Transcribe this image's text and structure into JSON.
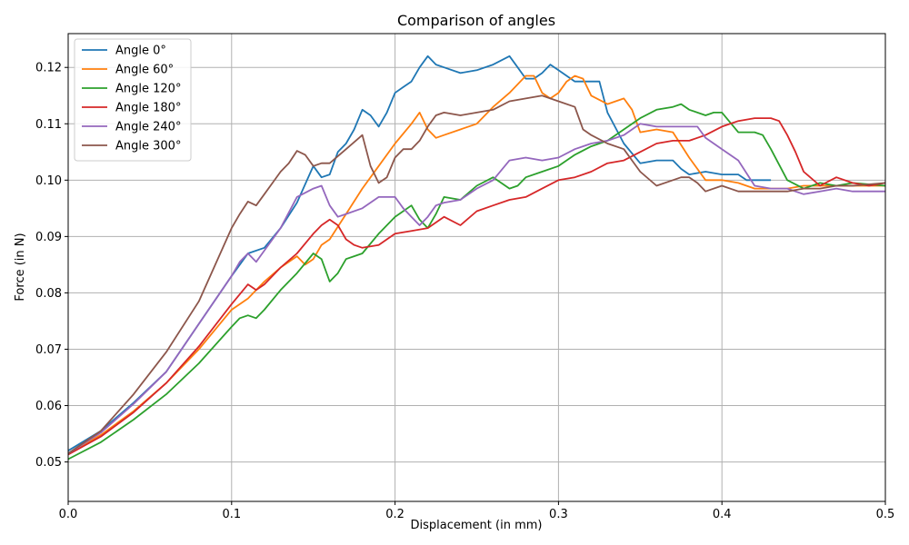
{
  "chart_data": {
    "type": "line",
    "title": "Comparison of angles",
    "xlabel": "Displacement (in mm)",
    "ylabel": "Force (in N)",
    "xlim": [
      0.0,
      0.5
    ],
    "ylim": [
      0.043,
      0.126
    ],
    "grid": true,
    "legend_position": "top-left",
    "x_ticks": [
      "0.0",
      "0.1",
      "0.2",
      "0.3",
      "0.4",
      "0.5"
    ],
    "y_ticks": [
      "0.05",
      "0.06",
      "0.07",
      "0.08",
      "0.09",
      "0.10",
      "0.11",
      "0.12"
    ],
    "series": [
      {
        "name": "Angle 0°",
        "color": "#1f77b4",
        "x": [
          0,
          0.02,
          0.04,
          0.06,
          0.08,
          0.1,
          0.11,
          0.12,
          0.13,
          0.14,
          0.15,
          0.155,
          0.16,
          0.165,
          0.17,
          0.175,
          0.18,
          0.185,
          0.19,
          0.195,
          0.2,
          0.205,
          0.21,
          0.215,
          0.22,
          0.225,
          0.23,
          0.24,
          0.25,
          0.26,
          0.27,
          0.275,
          0.28,
          0.285,
          0.29,
          0.295,
          0.3,
          0.31,
          0.32,
          0.325,
          0.33,
          0.34,
          0.35,
          0.36,
          0.37,
          0.375,
          0.38,
          0.39,
          0.4,
          0.41,
          0.415,
          0.42,
          0.43
        ],
        "y": [
          0.052,
          0.0555,
          0.0605,
          0.066,
          0.0745,
          0.083,
          0.087,
          0.088,
          0.0915,
          0.096,
          0.1025,
          0.1005,
          0.101,
          0.105,
          0.1065,
          0.109,
          0.1125,
          0.1115,
          0.1095,
          0.112,
          0.1155,
          0.1165,
          0.1175,
          0.12,
          0.122,
          0.1205,
          0.12,
          0.119,
          0.1195,
          0.1205,
          0.122,
          0.12,
          0.118,
          0.118,
          0.119,
          0.1205,
          0.1195,
          0.1175,
          0.1175,
          0.1175,
          0.112,
          0.1065,
          0.103,
          0.1035,
          0.1035,
          0.102,
          0.101,
          0.1015,
          0.101,
          0.101,
          0.1,
          0.1,
          0.1
        ]
      },
      {
        "name": "Angle 60°",
        "color": "#ff7f0e",
        "x": [
          0,
          0.02,
          0.04,
          0.06,
          0.08,
          0.1,
          0.11,
          0.12,
          0.13,
          0.14,
          0.145,
          0.15,
          0.155,
          0.16,
          0.17,
          0.18,
          0.19,
          0.2,
          0.21,
          0.215,
          0.22,
          0.225,
          0.23,
          0.24,
          0.25,
          0.26,
          0.27,
          0.28,
          0.285,
          0.29,
          0.295,
          0.3,
          0.305,
          0.31,
          0.315,
          0.32,
          0.33,
          0.34,
          0.345,
          0.35,
          0.36,
          0.37,
          0.38,
          0.39,
          0.4,
          0.41,
          0.42,
          0.43,
          0.44,
          0.45,
          0.5
        ],
        "y": [
          0.0515,
          0.0548,
          0.059,
          0.064,
          0.07,
          0.077,
          0.079,
          0.082,
          0.0845,
          0.0865,
          0.085,
          0.086,
          0.0885,
          0.0895,
          0.094,
          0.0985,
          0.1025,
          0.1065,
          0.11,
          0.112,
          0.109,
          0.1075,
          0.108,
          0.109,
          0.11,
          0.113,
          0.1155,
          0.1185,
          0.1185,
          0.1155,
          0.1145,
          0.1155,
          0.1175,
          0.1185,
          0.118,
          0.115,
          0.1135,
          0.1145,
          0.1125,
          0.1085,
          0.109,
          0.1085,
          0.104,
          0.1,
          0.1,
          0.0995,
          0.0985,
          0.0985,
          0.0985,
          0.099,
          0.099
        ]
      },
      {
        "name": "Angle 120°",
        "color": "#2ca02c",
        "x": [
          0,
          0.02,
          0.04,
          0.06,
          0.08,
          0.1,
          0.105,
          0.11,
          0.115,
          0.12,
          0.13,
          0.14,
          0.15,
          0.155,
          0.16,
          0.165,
          0.17,
          0.175,
          0.18,
          0.19,
          0.2,
          0.205,
          0.21,
          0.215,
          0.22,
          0.225,
          0.23,
          0.24,
          0.25,
          0.26,
          0.27,
          0.275,
          0.28,
          0.29,
          0.3,
          0.31,
          0.32,
          0.33,
          0.34,
          0.35,
          0.36,
          0.37,
          0.375,
          0.38,
          0.39,
          0.395,
          0.4,
          0.41,
          0.42,
          0.425,
          0.43,
          0.44,
          0.45,
          0.46,
          0.47,
          0.48,
          0.5
        ],
        "y": [
          0.0505,
          0.0535,
          0.0575,
          0.062,
          0.0675,
          0.074,
          0.0755,
          0.076,
          0.0755,
          0.077,
          0.0805,
          0.0835,
          0.087,
          0.086,
          0.082,
          0.0835,
          0.086,
          0.0865,
          0.087,
          0.0905,
          0.0935,
          0.0945,
          0.0955,
          0.093,
          0.0915,
          0.094,
          0.097,
          0.0965,
          0.099,
          0.1005,
          0.0985,
          0.099,
          0.1005,
          0.1015,
          0.1025,
          0.1045,
          0.106,
          0.107,
          0.109,
          0.111,
          0.1125,
          0.113,
          0.1135,
          0.1125,
          0.1115,
          0.112,
          0.112,
          0.1085,
          0.1085,
          0.108,
          0.1055,
          0.1,
          0.0985,
          0.0995,
          0.099,
          0.0995,
          0.099
        ]
      },
      {
        "name": "Angle 180°",
        "color": "#d62728",
        "x": [
          0,
          0.02,
          0.04,
          0.06,
          0.08,
          0.1,
          0.11,
          0.115,
          0.12,
          0.13,
          0.14,
          0.15,
          0.155,
          0.16,
          0.165,
          0.17,
          0.175,
          0.18,
          0.19,
          0.2,
          0.21,
          0.22,
          0.23,
          0.24,
          0.25,
          0.26,
          0.27,
          0.28,
          0.29,
          0.3,
          0.31,
          0.32,
          0.33,
          0.34,
          0.35,
          0.36,
          0.37,
          0.38,
          0.39,
          0.4,
          0.41,
          0.42,
          0.43,
          0.435,
          0.44,
          0.445,
          0.45,
          0.46,
          0.47,
          0.48,
          0.49,
          0.5
        ],
        "y": [
          0.0513,
          0.0545,
          0.0588,
          0.064,
          0.0705,
          0.078,
          0.0815,
          0.0805,
          0.0815,
          0.0845,
          0.087,
          0.0905,
          0.092,
          0.093,
          0.092,
          0.0895,
          0.0885,
          0.088,
          0.0885,
          0.0905,
          0.091,
          0.0915,
          0.0935,
          0.092,
          0.0945,
          0.0955,
          0.0965,
          0.097,
          0.0985,
          0.1,
          0.1005,
          0.1015,
          0.103,
          0.1035,
          0.105,
          0.1065,
          0.107,
          0.107,
          0.108,
          0.1095,
          0.1105,
          0.111,
          0.111,
          0.1105,
          0.108,
          0.105,
          0.1015,
          0.099,
          0.1005,
          0.0995,
          0.099,
          0.0995
        ]
      },
      {
        "name": "Angle 240°",
        "color": "#9467bd",
        "x": [
          0,
          0.02,
          0.04,
          0.06,
          0.08,
          0.1,
          0.105,
          0.11,
          0.115,
          0.12,
          0.13,
          0.14,
          0.15,
          0.155,
          0.16,
          0.165,
          0.17,
          0.18,
          0.19,
          0.2,
          0.205,
          0.21,
          0.215,
          0.22,
          0.225,
          0.23,
          0.24,
          0.25,
          0.26,
          0.27,
          0.28,
          0.29,
          0.3,
          0.31,
          0.32,
          0.33,
          0.34,
          0.35,
          0.36,
          0.37,
          0.38,
          0.385,
          0.39,
          0.4,
          0.41,
          0.42,
          0.43,
          0.44,
          0.45,
          0.46,
          0.47,
          0.48,
          0.5
        ],
        "y": [
          0.0515,
          0.0552,
          0.0603,
          0.066,
          0.0745,
          0.083,
          0.0855,
          0.087,
          0.0855,
          0.0875,
          0.0915,
          0.097,
          0.0985,
          0.099,
          0.0955,
          0.0935,
          0.094,
          0.095,
          0.097,
          0.097,
          0.095,
          0.0935,
          0.092,
          0.0935,
          0.0955,
          0.096,
          0.0965,
          0.0985,
          0.1,
          0.1035,
          0.104,
          0.1035,
          0.104,
          0.1055,
          0.1065,
          0.107,
          0.108,
          0.11,
          0.1095,
          0.1095,
          0.1095,
          0.1095,
          0.1075,
          0.1055,
          0.1035,
          0.099,
          0.0985,
          0.0985,
          0.0975,
          0.098,
          0.0985,
          0.098,
          0.098
        ]
      },
      {
        "name": "Angle 300°",
        "color": "#8c564b",
        "x": [
          0,
          0.02,
          0.04,
          0.06,
          0.08,
          0.1,
          0.105,
          0.11,
          0.115,
          0.12,
          0.125,
          0.13,
          0.135,
          0.14,
          0.145,
          0.15,
          0.155,
          0.16,
          0.17,
          0.18,
          0.185,
          0.19,
          0.195,
          0.2,
          0.205,
          0.21,
          0.215,
          0.22,
          0.225,
          0.23,
          0.24,
          0.25,
          0.26,
          0.27,
          0.28,
          0.29,
          0.295,
          0.3,
          0.31,
          0.315,
          0.32,
          0.33,
          0.34,
          0.345,
          0.35,
          0.36,
          0.37,
          0.375,
          0.38,
          0.385,
          0.39,
          0.4,
          0.41,
          0.42,
          0.43,
          0.44,
          0.45,
          0.46,
          0.47,
          0.48,
          0.5
        ],
        "y": [
          0.0515,
          0.0555,
          0.062,
          0.0695,
          0.0785,
          0.0915,
          0.094,
          0.0962,
          0.0955,
          0.0975,
          0.0995,
          0.1015,
          0.103,
          0.1052,
          0.1045,
          0.1025,
          0.103,
          0.103,
          0.1055,
          0.108,
          0.1025,
          0.0995,
          0.1005,
          0.104,
          0.1055,
          0.1055,
          0.107,
          0.1095,
          0.1115,
          0.112,
          0.1115,
          0.112,
          0.1125,
          0.114,
          0.1145,
          0.115,
          0.1145,
          0.114,
          0.113,
          0.109,
          0.108,
          0.1065,
          0.1055,
          0.1035,
          0.1015,
          0.099,
          0.1,
          0.1005,
          0.1005,
          0.0995,
          0.098,
          0.099,
          0.098,
          0.098,
          0.098,
          0.098,
          0.0985,
          0.0985,
          0.099,
          0.099,
          0.0995
        ]
      }
    ]
  }
}
